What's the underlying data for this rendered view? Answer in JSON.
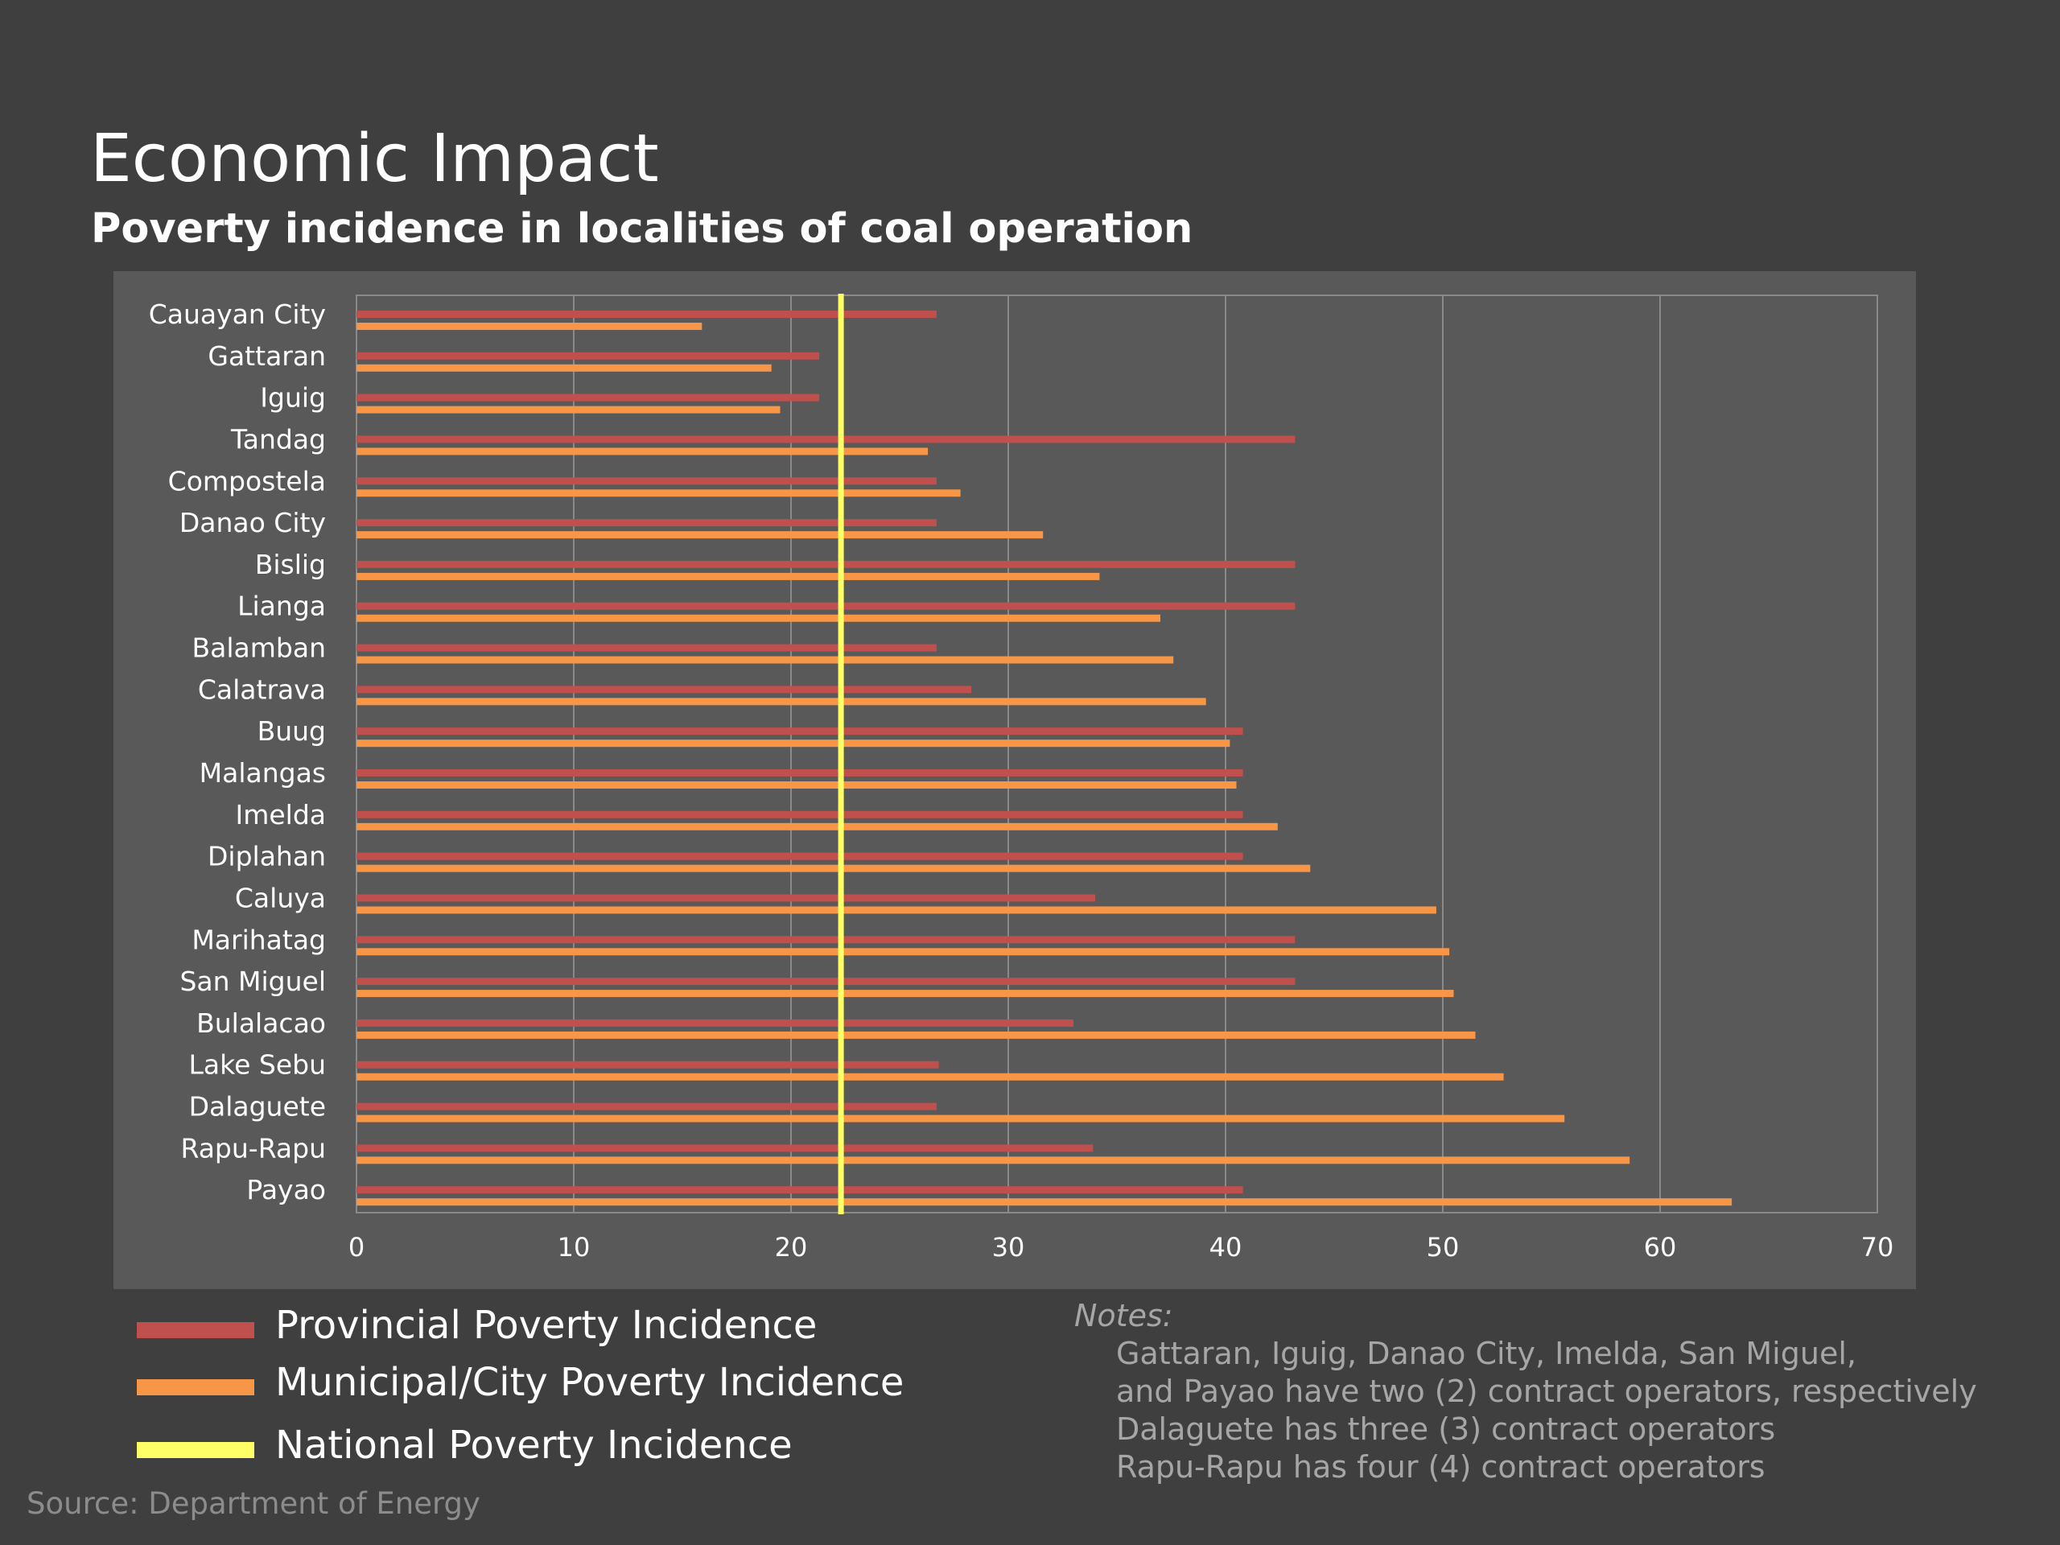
{
  "slide": {
    "title": "Economic Impact",
    "subtitle": "Poverty incidence in localities of coal operation",
    "source": "Source: Department of Energy"
  },
  "legend": {
    "items": [
      {
        "label": "Provincial Poverty Incidence",
        "color": "#c0504d"
      },
      {
        "label": "Municipal/City Poverty Incidence",
        "color": "#f79646"
      },
      {
        "label": "National Poverty Incidence",
        "color": "#ffff66"
      }
    ]
  },
  "notes": {
    "title": "Notes:",
    "lines": [
      "Gattaran, Iguig, Danao City, Imelda, San Miguel,",
      "and Payao have two (2) contract operators, respectively",
      "Dalaguete has three (3) contract operators",
      "Rapu-Rapu has four (4) contract operators"
    ]
  },
  "chart_data": {
    "type": "bar",
    "orientation": "horizontal",
    "categories": [
      "Cauayan City",
      "Gattaran",
      "Iguig",
      "Tandag",
      "Compostela",
      "Danao City",
      "Bislig",
      "Lianga",
      "Balamban",
      "Calatrava",
      "Buug",
      "Malangas",
      "Imelda",
      "Diplahan",
      "Caluya",
      "Marihatag",
      "San Miguel",
      "Bulalacao",
      "Lake Sebu",
      "Dalaguete",
      "Rapu-Rapu",
      "Payao"
    ],
    "series": [
      {
        "name": "Provincial Poverty Incidence",
        "color": "#c0504d",
        "values": [
          26.7,
          21.3,
          21.3,
          43.2,
          26.7,
          26.7,
          43.2,
          43.2,
          26.7,
          28.3,
          40.8,
          40.8,
          40.8,
          40.8,
          34.0,
          43.2,
          43.2,
          33.0,
          26.8,
          26.7,
          33.9,
          40.8
        ]
      },
      {
        "name": "Municipal/City Poverty Incidence",
        "color": "#f79646",
        "values": [
          15.9,
          19.1,
          19.5,
          26.3,
          27.8,
          31.6,
          34.2,
          37.0,
          37.6,
          39.1,
          40.2,
          40.5,
          42.4,
          43.9,
          49.7,
          50.3,
          50.5,
          51.5,
          52.8,
          55.6,
          58.6,
          63.3
        ]
      }
    ],
    "reference_line": {
      "name": "National Poverty Incidence",
      "value": 22.3,
      "color": "#ffff66"
    },
    "xlim": [
      0,
      70
    ],
    "xticks": [
      0,
      10,
      20,
      30,
      40,
      50,
      60,
      70
    ],
    "grid": true
  }
}
